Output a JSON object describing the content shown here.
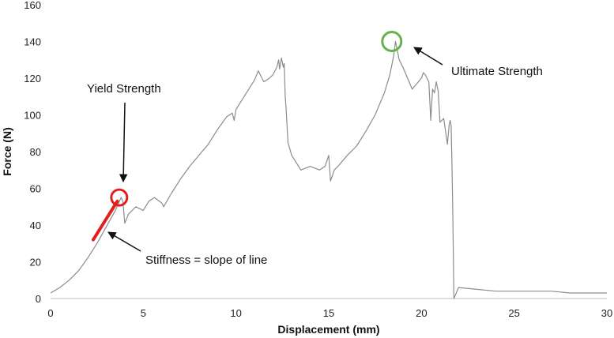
{
  "chart_data": {
    "type": "line",
    "title": "",
    "xlabel": "Displacement (mm)",
    "ylabel": "Force (N)",
    "xlim": [
      0,
      30
    ],
    "ylim": [
      0,
      160
    ],
    "xticks": [
      0,
      5,
      10,
      15,
      20,
      25,
      30
    ],
    "yticks": [
      0,
      20,
      40,
      60,
      80,
      100,
      120,
      140,
      160
    ],
    "grid": false,
    "series": [
      {
        "color": "#8c8c8c",
        "x": [
          0,
          0.5,
          1.0,
          1.5,
          2.0,
          2.5,
          3.0,
          3.5,
          3.8,
          3.9,
          4.0,
          4.2,
          4.6,
          5.0,
          5.3,
          5.6,
          6.0,
          6.1,
          6.5,
          7.0,
          7.5,
          8.0,
          8.5,
          9.0,
          9.5,
          9.8,
          9.9,
          10.0,
          10.5,
          11.0,
          11.2,
          11.5,
          11.8,
          12.0,
          12.2,
          12.3,
          12.35,
          12.4,
          12.45,
          12.55,
          12.6,
          12.65,
          12.7,
          12.8,
          13.0,
          13.5,
          14.0,
          14.5,
          14.8,
          15.0,
          15.1,
          15.3,
          15.5,
          16.0,
          16.5,
          17.0,
          17.5,
          18.0,
          18.3,
          18.5,
          18.55,
          18.6,
          18.8,
          19.0,
          19.5,
          20.0,
          20.1,
          20.2,
          20.4,
          20.5,
          20.6,
          20.7,
          20.8,
          20.9,
          21.0,
          21.2,
          21.4,
          21.5,
          21.55,
          21.6,
          21.65,
          21.7,
          21.75,
          22.0,
          23.0,
          24.0,
          25.0,
          26.0,
          27.0,
          28.0,
          29.0,
          30.0
        ],
        "y": [
          3,
          6,
          10,
          15,
          22,
          30,
          39,
          48,
          55,
          53,
          41,
          46,
          50,
          48,
          53,
          55,
          52,
          50,
          57,
          65,
          72,
          78,
          84,
          92,
          99,
          101,
          97,
          103,
          111,
          119,
          124,
          118,
          120,
          122,
          126,
          130,
          125,
          128,
          131,
          126,
          128,
          110,
          104,
          85,
          78,
          70,
          72,
          70,
          72,
          78,
          64,
          70,
          72,
          78,
          83,
          91,
          100,
          112,
          122,
          132,
          136,
          140,
          130,
          126,
          114,
          120,
          123,
          122,
          118,
          97,
          114,
          112,
          118,
          113,
          96,
          98,
          84,
          95,
          97,
          94,
          70,
          40,
          0,
          6,
          5,
          4,
          4,
          4,
          4,
          3,
          3,
          3
        ]
      }
    ],
    "annotations": [
      {
        "text": "Yield Strength",
        "target": [
          3.7,
          55
        ],
        "marker": "circle",
        "color": "#e02020"
      },
      {
        "text": "Ultimate Strength",
        "target": [
          18.4,
          140
        ],
        "marker": "circle",
        "color": "#6ab04c"
      },
      {
        "text": "Stiffness = slope of line",
        "target": [
          2.3,
          33
        ],
        "marker": "line",
        "color": "#e02020",
        "line_from": [
          2.3,
          32
        ],
        "line_to": [
          3.6,
          53
        ]
      }
    ]
  }
}
